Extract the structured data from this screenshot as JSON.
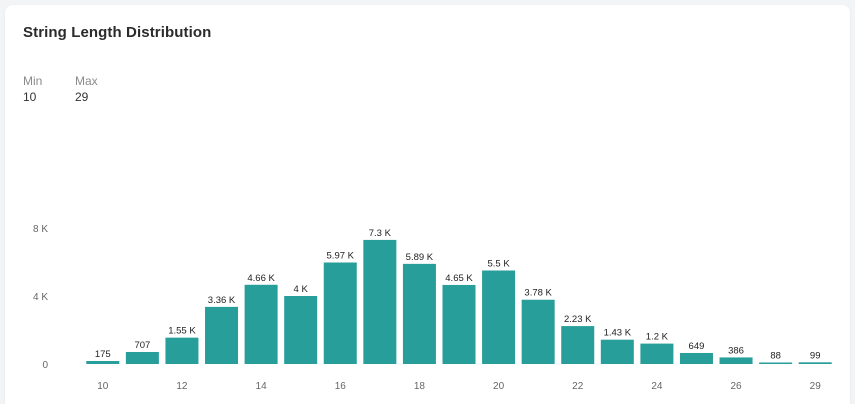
{
  "card": {
    "title": "String Length Distribution",
    "min_label": "Min",
    "min_value": "10",
    "max_label": "Max",
    "max_value": "29"
  },
  "chart_data": {
    "type": "bar",
    "title": "String Length Distribution",
    "xlabel": "",
    "ylabel": "",
    "ylim": [
      0,
      8000
    ],
    "yticks": [
      0,
      4000,
      8000
    ],
    "ytick_labels": [
      "0",
      "4 K",
      "8 K"
    ],
    "categories": [
      "10",
      "11",
      "12",
      "13",
      "14",
      "15",
      "16",
      "17",
      "18",
      "19",
      "20",
      "21",
      "22",
      "23",
      "24",
      "25",
      "26",
      "28",
      "29"
    ],
    "values": [
      175,
      707,
      1550,
      3360,
      4660,
      4000,
      5970,
      7300,
      5890,
      4650,
      5500,
      3780,
      2230,
      1430,
      1200,
      649,
      386,
      88,
      99
    ],
    "value_labels": [
      "175",
      "707",
      "1.55 K",
      "3.36 K",
      "4.66 K",
      "4 K",
      "5.97 K",
      "7.3 K",
      "5.89 K",
      "4.65 K",
      "5.5 K",
      "3.78 K",
      "2.23 K",
      "1.43 K",
      "1.2 K",
      "649",
      "386",
      "88",
      "99"
    ],
    "xtick_labels": [
      "10",
      "",
      "12",
      "",
      "14",
      "",
      "16",
      "",
      "18",
      "",
      "20",
      "",
      "22",
      "",
      "24",
      "",
      "26",
      "",
      "29"
    ],
    "bar_color": "#279e99",
    "grid": false,
    "legend": "none"
  }
}
